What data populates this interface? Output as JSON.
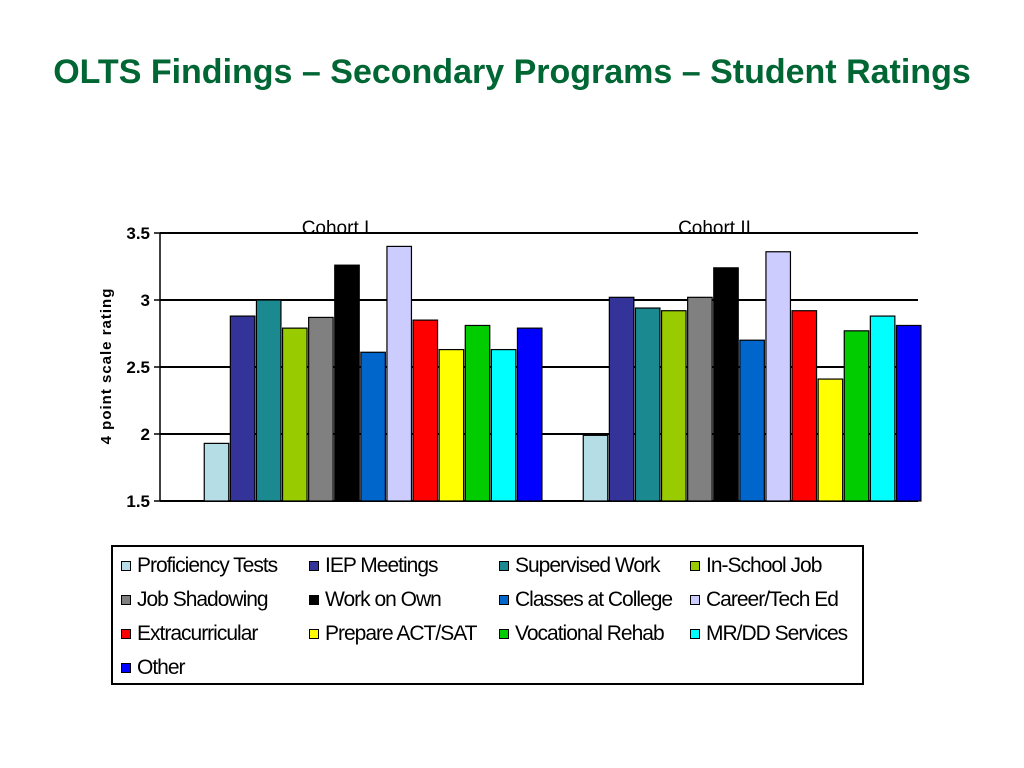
{
  "title": "OLTS Findings – Secondary Programs – Student Ratings",
  "chart_data": {
    "type": "bar",
    "title": "",
    "ylabel": "4 point scale rating",
    "ylim": [
      1.5,
      3.5
    ],
    "yticks": [
      "1.5",
      "2",
      "2.5",
      "3",
      "3.5"
    ],
    "yticks_values": [
      1.5,
      2,
      2.5,
      3,
      3.5
    ],
    "grid": true,
    "legend_position": "bottom",
    "categories": [
      "Cohort I",
      "Cohort II"
    ],
    "series": [
      {
        "name": "Proficiency Tests",
        "color": "#b4dde6",
        "values": [
          1.93,
          1.99
        ]
      },
      {
        "name": "IEP Meetings",
        "color": "#333399",
        "values": [
          2.88,
          3.02
        ]
      },
      {
        "name": "Supervised Work",
        "color": "#1a8a90",
        "values": [
          3.0,
          2.94
        ]
      },
      {
        "name": "In-School Job",
        "color": "#99cc00",
        "values": [
          2.79,
          2.92
        ]
      },
      {
        "name": "Job Shadowing",
        "color": "#808080",
        "values": [
          2.87,
          3.02
        ]
      },
      {
        "name": "Work on Own",
        "color": "#000000",
        "values": [
          3.26,
          3.24
        ]
      },
      {
        "name": "Classes at College",
        "color": "#0066cc",
        "values": [
          2.61,
          2.7
        ]
      },
      {
        "name": "Career/Tech Ed",
        "color": "#ccccff",
        "values": [
          3.4,
          3.36
        ]
      },
      {
        "name": "Extracurricular",
        "color": "#ff0000",
        "values": [
          2.85,
          2.92
        ]
      },
      {
        "name": "Prepare ACT/SAT",
        "color": "#ffff00",
        "values": [
          2.63,
          2.41
        ]
      },
      {
        "name": "Vocational Rehab",
        "color": "#00cc00",
        "values": [
          2.81,
          2.77
        ]
      },
      {
        "name": "MR/DD Services",
        "color": "#00ffff",
        "values": [
          2.63,
          2.88
        ]
      },
      {
        "name": "Other",
        "color": "#0000ff",
        "values": [
          2.79,
          2.81
        ]
      }
    ]
  }
}
